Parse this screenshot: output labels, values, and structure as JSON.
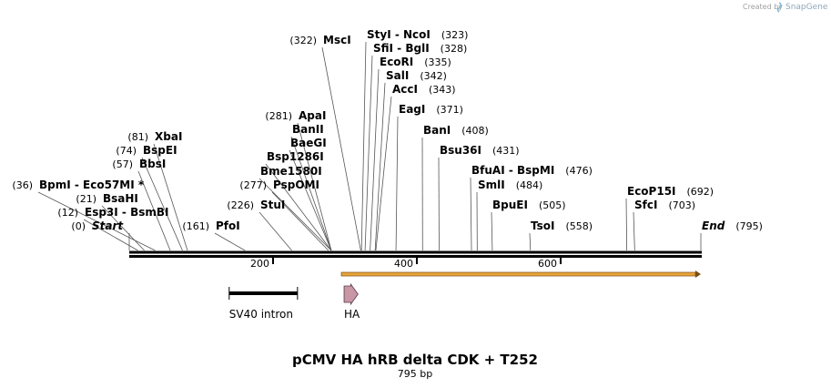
{
  "header": {
    "credit": "Created by",
    "brand": "SnapGene"
  },
  "map": {
    "title": "pCMV  HA hRB delta CDK + T252",
    "length_label": "795 bp",
    "length": 795,
    "ruler_ticks": [
      {
        "pos": 200,
        "label": "200"
      },
      {
        "pos": 400,
        "label": "400"
      },
      {
        "pos": 600,
        "label": "600"
      }
    ],
    "ends": {
      "start": "Start",
      "end": "End"
    }
  },
  "colors": {
    "backbone": "#000000",
    "orf_fill": "#e8a33a",
    "orf_stroke": "#7a4e12",
    "ha_fill": "#c996a6",
    "ha_stroke": "#5a3a44",
    "leader": "#555555"
  },
  "features": [
    {
      "name": "SV40 intron",
      "start": 139,
      "end": 234,
      "shape": "bar"
    },
    {
      "name": "HA",
      "start": 295,
      "end": 322,
      "shape": "arrow"
    },
    {
      "name": "",
      "start": 295,
      "end": 795,
      "shape": "orf"
    }
  ],
  "sites": [
    {
      "pos": 0,
      "name": "Start",
      "pos_label": "(0)",
      "italic": true,
      "side": "left"
    },
    {
      "pos": 12,
      "name": "Esp3I  - BsmBI",
      "pos_label": "(12)",
      "side": "left"
    },
    {
      "pos": 21,
      "name": "BsaHI",
      "pos_label": "(21)",
      "side": "left"
    },
    {
      "pos": 36,
      "name": "BpmI  - Eco57MI *",
      "pos_label": "(36)",
      "side": "left"
    },
    {
      "pos": 57,
      "name": "BbsI",
      "pos_label": "(57)",
      "side": "left"
    },
    {
      "pos": 74,
      "name": "BspEI",
      "pos_label": "(74)",
      "side": "left"
    },
    {
      "pos": 81,
      "name": "XbaI",
      "pos_label": "(81)",
      "side": "left"
    },
    {
      "pos": 161,
      "name": "PfoI",
      "pos_label": "(161)",
      "side": "left"
    },
    {
      "pos": 226,
      "name": "StuI",
      "pos_label": "(226)",
      "side": "left"
    },
    {
      "pos": 277,
      "name": "PspOMI",
      "pos_label": "(277)",
      "side": "left"
    },
    {
      "pos": 281,
      "name": "Bme1580I",
      "pos_label": "",
      "side": "left"
    },
    {
      "pos": 281,
      "name": "Bsp1286I",
      "pos_label": "",
      "side": "left"
    },
    {
      "pos": 281,
      "name": "BaeGI",
      "pos_label": "",
      "side": "left"
    },
    {
      "pos": 281,
      "name": "BanII",
      "pos_label": "",
      "side": "left"
    },
    {
      "pos": 281,
      "name": "ApaI",
      "pos_label": "(281)",
      "side": "left"
    },
    {
      "pos": 322,
      "name": "MscI",
      "pos_label": "(322)",
      "side": "left"
    },
    {
      "pos": 323,
      "name": "StyI  - NcoI",
      "pos_label": "(323)",
      "side": "right"
    },
    {
      "pos": 328,
      "name": "SfiI  - BglI",
      "pos_label": "(328)",
      "side": "right"
    },
    {
      "pos": 335,
      "name": "EcoRI",
      "pos_label": "(335)",
      "side": "right"
    },
    {
      "pos": 342,
      "name": "SalI",
      "pos_label": "(342)",
      "side": "right"
    },
    {
      "pos": 343,
      "name": "AccI",
      "pos_label": "(343)",
      "side": "right"
    },
    {
      "pos": 371,
      "name": "EagI",
      "pos_label": "(371)",
      "side": "right"
    },
    {
      "pos": 408,
      "name": "BanI",
      "pos_label": "(408)",
      "side": "right"
    },
    {
      "pos": 431,
      "name": "Bsu36I",
      "pos_label": "(431)",
      "side": "right"
    },
    {
      "pos": 476,
      "name": "BfuAI  - BspMI",
      "pos_label": "(476)",
      "side": "right"
    },
    {
      "pos": 484,
      "name": "SmlI",
      "pos_label": "(484)",
      "side": "right"
    },
    {
      "pos": 505,
      "name": "BpuEI",
      "pos_label": "(505)",
      "side": "right"
    },
    {
      "pos": 558,
      "name": "TsoI",
      "pos_label": "(558)",
      "side": "right"
    },
    {
      "pos": 692,
      "name": "EcoP15I",
      "pos_label": "(692)",
      "side": "right"
    },
    {
      "pos": 703,
      "name": "SfcI",
      "pos_label": "(703)",
      "side": "right"
    },
    {
      "pos": 795,
      "name": "End",
      "pos_label": "(795)",
      "italic": true,
      "side": "right"
    }
  ]
}
